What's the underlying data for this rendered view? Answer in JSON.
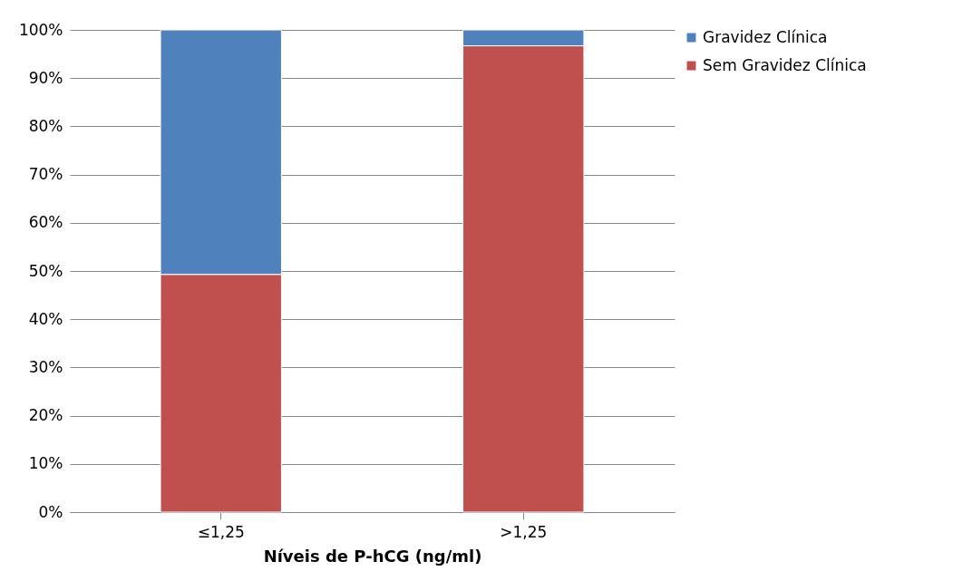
{
  "chart_data": {
    "type": "bar",
    "stacked": true,
    "xlabel": "Níveis de P-hCG (ng/ml)",
    "categories": [
      "≤1,25",
      ">1,25"
    ],
    "series": [
      {
        "name": "Sem Gravidez Clínica",
        "color": "#c0504d",
        "values": [
          49.3,
          96.7
        ]
      },
      {
        "name": "Gravidez Clínica",
        "color": "#4f81bd",
        "values": [
          50.7,
          3.3
        ]
      }
    ],
    "ylim": [
      0,
      100
    ],
    "yticks": [
      {
        "value": 0,
        "label": "0%"
      },
      {
        "value": 10,
        "label": "10%"
      },
      {
        "value": 20,
        "label": "20%"
      },
      {
        "value": 30,
        "label": "30%"
      },
      {
        "value": 40,
        "label": "40%"
      },
      {
        "value": 50,
        "label": "50%"
      },
      {
        "value": 60,
        "label": "60%"
      },
      {
        "value": 70,
        "label": "70%"
      },
      {
        "value": 80,
        "label": "80%"
      },
      {
        "value": 90,
        "label": "90%"
      },
      {
        "value": 100,
        "label": "100%"
      }
    ],
    "grid": "y",
    "legend": "right"
  }
}
